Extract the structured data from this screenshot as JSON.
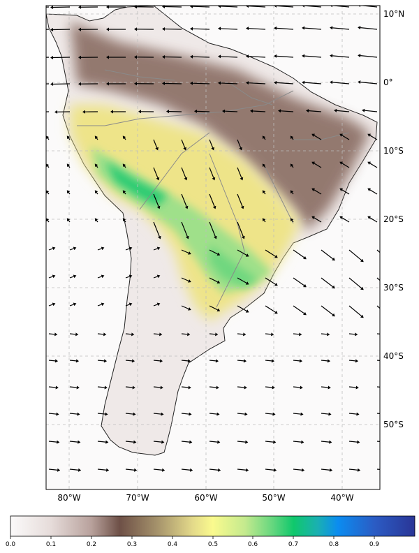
{
  "map": {
    "lat_labels": [
      "10°N",
      "0°",
      "10°S",
      "20°S",
      "30°S",
      "40°S",
      "50°S"
    ],
    "lon_labels": [
      "80°W",
      "70°W",
      "60°W",
      "50°W",
      "40°W"
    ],
    "gridlines": true,
    "vector_field": "wind arrows"
  },
  "colorbar": {
    "ticks": [
      "0.0",
      "0.1",
      "0.2",
      "0.3",
      "0.4",
      "0.5",
      "0.6",
      "0.7",
      "0.8",
      "0.9"
    ],
    "range": [
      0.0,
      1.0
    ],
    "colors": [
      "#fbfafa",
      "#e9e1df",
      "#c9b8b4",
      "#a48c86",
      "#7a5c54",
      "#8a7560",
      "#b9a575",
      "#f4ef8c",
      "#c8e890",
      "#7fdc86",
      "#12c86c",
      "#1aa0d8",
      "#0b8cf0",
      "#2d4fb6",
      "#2a3b98"
    ]
  },
  "colors": {
    "land_outline": "#333333",
    "river": "#8a8a8a",
    "grid": "#bdbdbd",
    "arrow": "#000000"
  }
}
